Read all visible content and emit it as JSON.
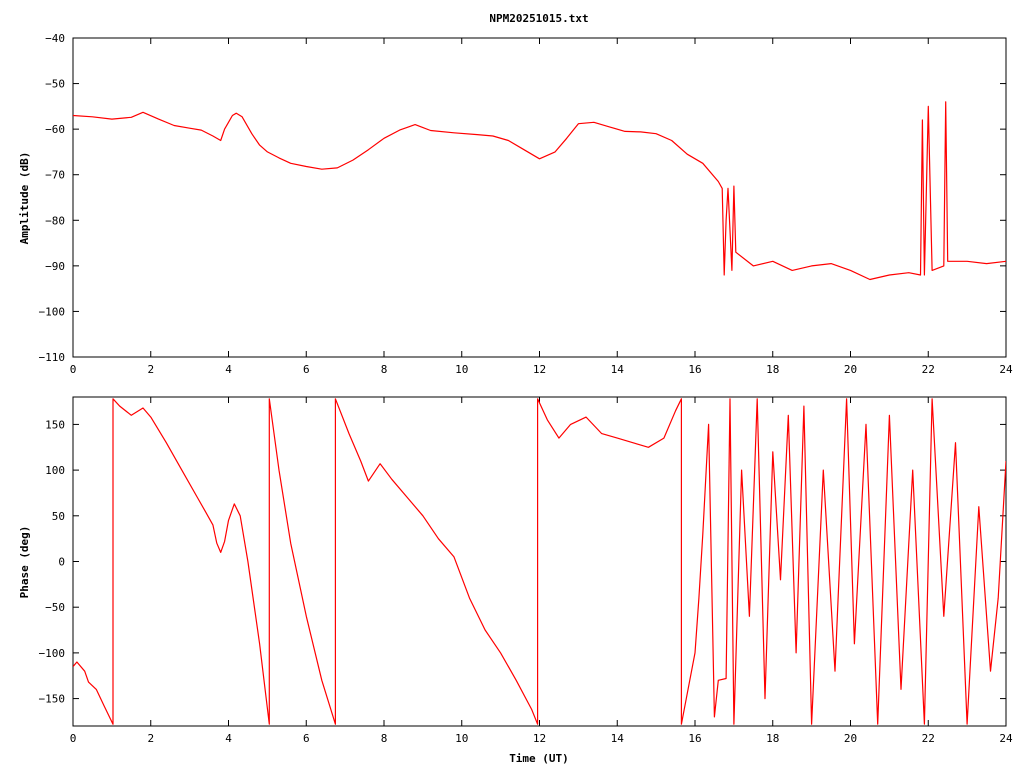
{
  "chart_data": [
    {
      "type": "line",
      "title": "NPM20251015.txt",
      "xlabel": "",
      "ylabel": "Amplitude (dB)",
      "xlim": [
        0,
        24
      ],
      "ylim": [
        -110,
        -40
      ],
      "x_ticks": [
        0,
        2,
        4,
        6,
        8,
        10,
        12,
        14,
        16,
        18,
        20,
        22,
        24
      ],
      "y_ticks": [
        -110,
        -100,
        -90,
        -80,
        -70,
        -60,
        -50,
        -40
      ],
      "grid": false,
      "series": [
        {
          "color": "#ff0000",
          "points": [
            [
              0,
              -57
            ],
            [
              0.5,
              -57.3
            ],
            [
              1,
              -57.8
            ],
            [
              1.5,
              -57.4
            ],
            [
              1.8,
              -56.3
            ],
            [
              2.2,
              -57.8
            ],
            [
              2.6,
              -59.2
            ],
            [
              3,
              -59.8
            ],
            [
              3.3,
              -60.2
            ],
            [
              3.6,
              -61.5
            ],
            [
              3.8,
              -62.5
            ],
            [
              3.9,
              -60
            ],
            [
              4,
              -58.5
            ],
            [
              4.1,
              -57
            ],
            [
              4.2,
              -56.5
            ],
            [
              4.35,
              -57.3
            ],
            [
              4.6,
              -61
            ],
            [
              4.8,
              -63.5
            ],
            [
              5,
              -65
            ],
            [
              5.3,
              -66.3
            ],
            [
              5.6,
              -67.5
            ],
            [
              6,
              -68.2
            ],
            [
              6.4,
              -68.8
            ],
            [
              6.8,
              -68.5
            ],
            [
              7.2,
              -66.8
            ],
            [
              7.6,
              -64.5
            ],
            [
              8,
              -62
            ],
            [
              8.4,
              -60.2
            ],
            [
              8.8,
              -59
            ],
            [
              9.2,
              -60.3
            ],
            [
              9.8,
              -60.8
            ],
            [
              10.4,
              -61.2
            ],
            [
              10.8,
              -61.5
            ],
            [
              11.2,
              -62.5
            ],
            [
              11.6,
              -64.5
            ],
            [
              12,
              -66.5
            ],
            [
              12.4,
              -65
            ],
            [
              12.7,
              -62
            ],
            [
              13,
              -58.8
            ],
            [
              13.4,
              -58.5
            ],
            [
              13.8,
              -59.5
            ],
            [
              14.2,
              -60.5
            ],
            [
              14.6,
              -60.6
            ],
            [
              15,
              -61
            ],
            [
              15.4,
              -62.5
            ],
            [
              15.8,
              -65.5
            ],
            [
              16.2,
              -67.5
            ],
            [
              16.6,
              -71.5
            ],
            [
              16.7,
              -73
            ],
            [
              16.75,
              -92
            ],
            [
              16.8,
              -80
            ],
            [
              16.85,
              -73
            ],
            [
              16.95,
              -91
            ],
            [
              17,
              -72.5
            ],
            [
              17.05,
              -87
            ],
            [
              17.5,
              -90
            ],
            [
              18,
              -89
            ],
            [
              18.5,
              -91
            ],
            [
              19,
              -90
            ],
            [
              19.5,
              -89.5
            ],
            [
              20,
              -91
            ],
            [
              20.5,
              -93
            ],
            [
              21,
              -92
            ],
            [
              21.5,
              -91.5
            ],
            [
              21.8,
              -92
            ],
            [
              21.85,
              -58
            ],
            [
              21.9,
              -92
            ],
            [
              22,
              -55
            ],
            [
              22.1,
              -91
            ],
            [
              22.4,
              -90
            ],
            [
              22.45,
              -54
            ],
            [
              22.5,
              -89
            ],
            [
              23,
              -89
            ],
            [
              23.5,
              -89.5
            ],
            [
              24,
              -89
            ]
          ]
        }
      ]
    },
    {
      "type": "line",
      "title": "",
      "xlabel": "Time (UT)",
      "ylabel": "Phase (deg)",
      "xlim": [
        0,
        24
      ],
      "ylim": [
        -180,
        180
      ],
      "x_ticks": [
        0,
        2,
        4,
        6,
        8,
        10,
        12,
        14,
        16,
        18,
        20,
        22,
        24
      ],
      "y_ticks": [
        -150,
        -100,
        -50,
        0,
        50,
        100,
        150
      ],
      "grid": false,
      "series": [
        {
          "color": "#ff0000",
          "points": [
            [
              0,
              -115
            ],
            [
              0.1,
              -110
            ],
            [
              0.3,
              -120
            ],
            [
              0.4,
              -132
            ],
            [
              0.6,
              -140
            ],
            [
              0.8,
              -158
            ],
            [
              1.03,
              -178
            ],
            [
              1.03,
              178
            ],
            [
              1.2,
              170
            ],
            [
              1.5,
              160
            ],
            [
              1.8,
              168
            ],
            [
              2,
              158
            ],
            [
              2.4,
              130
            ],
            [
              2.8,
              100
            ],
            [
              3.2,
              70
            ],
            [
              3.4,
              55
            ],
            [
              3.6,
              40
            ],
            [
              3.7,
              20
            ],
            [
              3.8,
              10
            ],
            [
              3.9,
              22
            ],
            [
              4,
              45
            ],
            [
              4.15,
              63
            ],
            [
              4.3,
              50
            ],
            [
              4.5,
              0
            ],
            [
              4.8,
              -90
            ],
            [
              5.05,
              -178
            ],
            [
              5.05,
              178
            ],
            [
              5.3,
              100
            ],
            [
              5.6,
              20
            ],
            [
              6,
              -60
            ],
            [
              6.4,
              -130
            ],
            [
              6.75,
              -178
            ],
            [
              6.75,
              178
            ],
            [
              7.1,
              140
            ],
            [
              7.4,
              110
            ],
            [
              7.6,
              88
            ],
            [
              7.9,
              107
            ],
            [
              8.2,
              90
            ],
            [
              8.6,
              70
            ],
            [
              9,
              50
            ],
            [
              9.4,
              25
            ],
            [
              9.8,
              5
            ],
            [
              10.2,
              -40
            ],
            [
              10.6,
              -75
            ],
            [
              11,
              -100
            ],
            [
              11.4,
              -130
            ],
            [
              11.8,
              -162
            ],
            [
              11.95,
              -178
            ],
            [
              11.95,
              178
            ],
            [
              12.2,
              155
            ],
            [
              12.5,
              135
            ],
            [
              12.8,
              150
            ],
            [
              13.2,
              158
            ],
            [
              13.6,
              140
            ],
            [
              14,
              135
            ],
            [
              14.4,
              130
            ],
            [
              14.8,
              125
            ],
            [
              15.2,
              135
            ],
            [
              15.5,
              165
            ],
            [
              15.65,
              178
            ],
            [
              15.65,
              -178
            ],
            [
              16,
              -100
            ],
            [
              16.1,
              -40
            ],
            [
              16.2,
              30
            ],
            [
              16.35,
              150
            ],
            [
              16.5,
              -170
            ],
            [
              16.6,
              -130
            ],
            [
              16.8,
              -128
            ],
            [
              16.9,
              178
            ],
            [
              17,
              -178
            ],
            [
              17.2,
              100
            ],
            [
              17.4,
              -60
            ],
            [
              17.6,
              178
            ],
            [
              17.8,
              -150
            ],
            [
              18,
              120
            ],
            [
              18.2,
              -20
            ],
            [
              18.4,
              160
            ],
            [
              18.6,
              -100
            ],
            [
              18.8,
              170
            ],
            [
              19,
              -178
            ],
            [
              19.3,
              100
            ],
            [
              19.6,
              -120
            ],
            [
              19.9,
              178
            ],
            [
              20.1,
              -90
            ],
            [
              20.4,
              150
            ],
            [
              20.7,
              -178
            ],
            [
              21,
              160
            ],
            [
              21.3,
              -140
            ],
            [
              21.6,
              100
            ],
            [
              21.9,
              -178
            ],
            [
              22.1,
              178
            ],
            [
              22.4,
              -60
            ],
            [
              22.7,
              130
            ],
            [
              23,
              -178
            ],
            [
              23.3,
              60
            ],
            [
              23.6,
              -120
            ],
            [
              23.8,
              -40
            ],
            [
              24,
              110
            ]
          ]
        }
      ]
    }
  ]
}
